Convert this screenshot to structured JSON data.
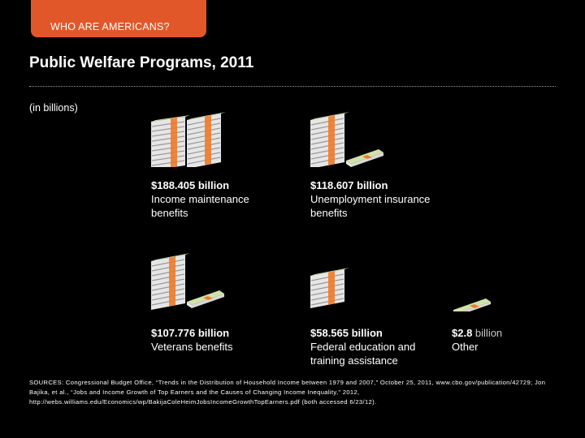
{
  "header": {
    "tab_label": "WHO ARE AMERICANS?"
  },
  "title": "Public Welfare Programs, 2011",
  "unit_note": "(in billions)",
  "colors": {
    "tab": "#e2572a",
    "band": "#f07a2a",
    "money": "#cfe3a8"
  },
  "programs": [
    {
      "amount": "$188.405 billion",
      "label": "Income maintenance benefits",
      "icon": "money-stack-two-icon"
    },
    {
      "amount": "$118.607 billion",
      "label": "Unemployment insurance benefits",
      "icon": "money-stack-one-and-small-icon"
    },
    {
      "amount": "$107.776 billion",
      "label": "Veterans benefits",
      "icon": "money-stack-one-and-small-icon"
    },
    {
      "amount": "$58.565 billion",
      "label": "Federal education and training assistance",
      "icon": "money-stack-half-icon"
    },
    {
      "amount_bold": "$2.8",
      "amount_light": " billion",
      "label": "Other",
      "icon": "money-bill-icon"
    }
  ],
  "sources": "SOURCES: Congressional Budget Office, “Trends in the Distribution of Household Income between 1979 and 2007,” October 25, 2011, www.cbo.gov/publication/42729; Jon Bajika, et al., “Jobs and Income Growth of Top Earners and the Causes of Changing Income Inequality,” 2012, http://webs.williams.edu/Economics/wp/BakijaColeHeimJobsIncomeGrowthTopEarners.pdf (both accessed 6/23/12)."
}
